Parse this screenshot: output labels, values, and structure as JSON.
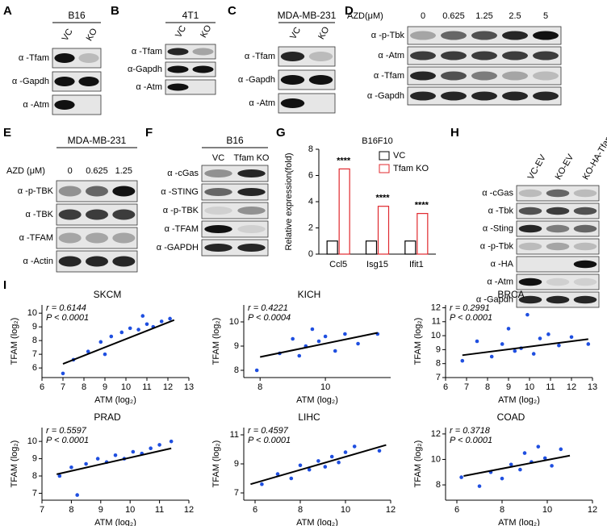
{
  "blots": [
    {
      "letter": "A",
      "title": "B16",
      "lanes": [
        "VC",
        "KO"
      ],
      "rows": [
        "α -Tfam",
        "α -Gapdh",
        "α -Atm"
      ]
    },
    {
      "letter": "B",
      "title": "4T1",
      "lanes": [
        "VC",
        "KO"
      ],
      "rows": [
        "α -Tfam",
        "α-Gapdh",
        "α -Atm"
      ]
    },
    {
      "letter": "C",
      "title": "MDA-MB-231",
      "lanes": [
        "VC",
        "KO"
      ],
      "rows": [
        "α -Tfam",
        "α -Gapdh",
        "α -Atm"
      ]
    },
    {
      "letter": "D",
      "header": "AZD(μM)",
      "lanes": [
        "0",
        "0.625",
        "1.25",
        "2.5",
        "5"
      ],
      "rows": [
        "α -p-Tbk",
        "α -Atm",
        "α -Tfam",
        "α -Gapdh"
      ]
    },
    {
      "letter": "E",
      "title": "MDA-MB-231",
      "header": "AZD (μM)",
      "lanes": [
        "0",
        "0.625",
        "1.25"
      ],
      "rows": [
        "α -p-TBK",
        "α -TBK",
        "α -TFAM",
        "α -Actin"
      ]
    },
    {
      "letter": "F",
      "title": "B16",
      "lanes": [
        "VC",
        "Tfam KO"
      ],
      "rows": [
        "α -cGas",
        "α -STING",
        "α -p-TBK",
        "α -TFAM",
        "α -GAPDH"
      ]
    },
    {
      "letter": "H",
      "lanes": [
        "VC-EV",
        "KO-EV",
        "KO-HA-Tfam"
      ],
      "rows": [
        "α -cGas",
        "α -Tbk",
        "α -Sting",
        "α -p-Tbk",
        "α -HA",
        "α -Atm",
        "α -Gapdh"
      ]
    }
  ],
  "scatter_panel": "I",
  "chart_data": [
    {
      "type": "bar",
      "panel": "G",
      "title": "B16F10",
      "ylabel": "Relative expression(fold)",
      "categories": [
        "Ccl5",
        "Isg15",
        "Ifit1"
      ],
      "series": [
        {
          "name": "VC",
          "color": "#000000",
          "values": [
            1,
            1,
            1
          ]
        },
        {
          "name": "Tfam KO",
          "color": "#e0282e",
          "values": [
            6.5,
            3.65,
            3.1
          ]
        }
      ],
      "annotations": [
        "****",
        "****",
        "****"
      ],
      "ylim": [
        0,
        8
      ],
      "yticks": [
        0,
        2,
        4,
        6,
        8
      ],
      "legend": "top-right"
    },
    {
      "type": "scatter",
      "title": "SKCM",
      "stat_r": "r = 0.6144",
      "stat_p": "P < 0.0001",
      "xlabel": "ATM (log₂)",
      "ylabel": "TFAM (log₂)",
      "color": "#1f4fe0",
      "x": [
        7.0,
        7.5,
        8.2,
        8.8,
        9.3,
        9.8,
        10.2,
        10.6,
        11.0,
        11.3,
        11.7,
        12.1,
        9.0,
        10.8
      ],
      "y": [
        5.6,
        6.6,
        7.2,
        7.9,
        8.3,
        8.6,
        8.9,
        8.8,
        9.2,
        9.0,
        9.4,
        9.6,
        7.0,
        9.8
      ],
      "fit": {
        "x": [
          7.0,
          12.3
        ],
        "y": [
          6.3,
          9.5
        ]
      },
      "xlim": [
        6,
        13
      ],
      "xticks": [
        6,
        7,
        8,
        9,
        10,
        11,
        12,
        13
      ],
      "ylim": [
        5.3,
        10.6
      ],
      "yticks": [
        6,
        7,
        8,
        9,
        10
      ]
    },
    {
      "type": "scatter",
      "title": "KICH",
      "stat_r": "r = 0.4221",
      "stat_p": "P < 0.0004",
      "xlabel": "ATM (log₂)",
      "ylabel": "TFAM (log₂)",
      "color": "#1f4fe0",
      "x": [
        7.9,
        8.6,
        9.0,
        9.2,
        9.4,
        9.6,
        9.8,
        10.0,
        10.3,
        10.6,
        11.0,
        11.6
      ],
      "y": [
        8.0,
        8.7,
        9.3,
        8.6,
        9.0,
        9.7,
        9.2,
        9.4,
        8.8,
        9.5,
        9.1,
        9.5
      ],
      "fit": {
        "x": [
          8.0,
          11.6
        ],
        "y": [
          8.55,
          9.55
        ]
      },
      "xlim": [
        7.5,
        12
      ],
      "xticks": [
        8,
        10
      ],
      "ylim": [
        7.7,
        10.7
      ],
      "yticks": [
        8,
        9,
        10
      ]
    },
    {
      "type": "scatter",
      "title": "BRCA",
      "stat_r": "r = 0.2991",
      "stat_p": "P < 0.0001",
      "xlabel": "ATM (log₂)",
      "ylabel": "TFAM (log₂)",
      "color": "#1f4fe0",
      "x": [
        6.8,
        7.5,
        8.2,
        8.7,
        9.0,
        9.3,
        9.6,
        9.9,
        10.2,
        10.5,
        10.9,
        11.4,
        12.0,
        12.8
      ],
      "y": [
        8.2,
        9.6,
        8.5,
        9.4,
        10.5,
        8.9,
        9.1,
        11.5,
        8.7,
        9.8,
        10.1,
        9.3,
        9.9,
        9.4
      ],
      "fit": {
        "x": [
          6.8,
          12.8
        ],
        "y": [
          8.6,
          9.75
        ]
      },
      "xlim": [
        6,
        13
      ],
      "xticks": [
        6,
        7,
        8,
        9,
        10,
        11,
        12,
        13
      ],
      "ylim": [
        7,
        12.2
      ],
      "yticks": [
        7,
        8,
        9,
        10,
        11,
        12
      ]
    },
    {
      "type": "scatter",
      "title": "PRAD",
      "stat_r": "r = 0.5597",
      "stat_p": "P < 0.0001",
      "xlabel": "ATM (log₂)",
      "ylabel": "TFAM (log₂)",
      "color": "#1f4fe0",
      "x": [
        7.6,
        8.0,
        8.5,
        8.9,
        9.2,
        9.5,
        9.8,
        10.1,
        10.4,
        10.7,
        11.0,
        11.4,
        8.2
      ],
      "y": [
        8.0,
        8.5,
        8.7,
        9.0,
        8.8,
        9.2,
        9.0,
        9.4,
        9.3,
        9.6,
        9.8,
        10.0,
        6.9
      ],
      "fit": {
        "x": [
          7.5,
          11.4
        ],
        "y": [
          8.1,
          9.6
        ]
      },
      "xlim": [
        7,
        12
      ],
      "xticks": [
        7,
        8,
        9,
        10,
        11,
        12
      ],
      "ylim": [
        6.6,
        10.8
      ],
      "yticks": [
        7,
        8,
        9,
        10
      ]
    },
    {
      "type": "scatter",
      "title": "LIHC",
      "stat_r": "r = 0.4597",
      "stat_p": "P < 0.0001",
      "xlabel": "ATM (log₂)",
      "ylabel": "TFAM (log₂)",
      "color": "#1f4fe0",
      "x": [
        6.3,
        7.0,
        7.6,
        8.0,
        8.4,
        8.8,
        9.1,
        9.4,
        9.7,
        10.0,
        10.4,
        11.5
      ],
      "y": [
        7.6,
        8.3,
        8.0,
        8.9,
        8.6,
        9.2,
        8.8,
        9.5,
        9.1,
        9.8,
        10.2,
        9.9
      ],
      "fit": {
        "x": [
          5.8,
          11.8
        ],
        "y": [
          7.6,
          10.3
        ]
      },
      "xlim": [
        5.5,
        12
      ],
      "xticks": [
        6,
        8,
        10,
        12
      ],
      "ylim": [
        6.5,
        11.5
      ],
      "yticks": [
        7,
        9,
        11
      ]
    },
    {
      "type": "scatter",
      "title": "COAD",
      "stat_r": "r = 0.3718",
      "stat_p": "P < 0.0001",
      "xlabel": "ATM (log₂)",
      "ylabel": "TFAM (log₂)",
      "color": "#1f4fe0",
      "x": [
        6.2,
        7.0,
        7.5,
        8.0,
        8.4,
        8.8,
        9.0,
        9.3,
        9.6,
        9.9,
        10.2,
        10.6
      ],
      "y": [
        8.6,
        7.9,
        9.0,
        8.5,
        9.6,
        9.2,
        10.5,
        9.8,
        11.0,
        10.1,
        9.5,
        10.8
      ],
      "fit": {
        "x": [
          6.3,
          11.0
        ],
        "y": [
          8.7,
          10.3
        ]
      },
      "xlim": [
        5.5,
        12
      ],
      "xticks": [
        6,
        8,
        10,
        12
      ],
      "ylim": [
        6.8,
        12.5
      ],
      "yticks": [
        8,
        10,
        12
      ]
    }
  ]
}
